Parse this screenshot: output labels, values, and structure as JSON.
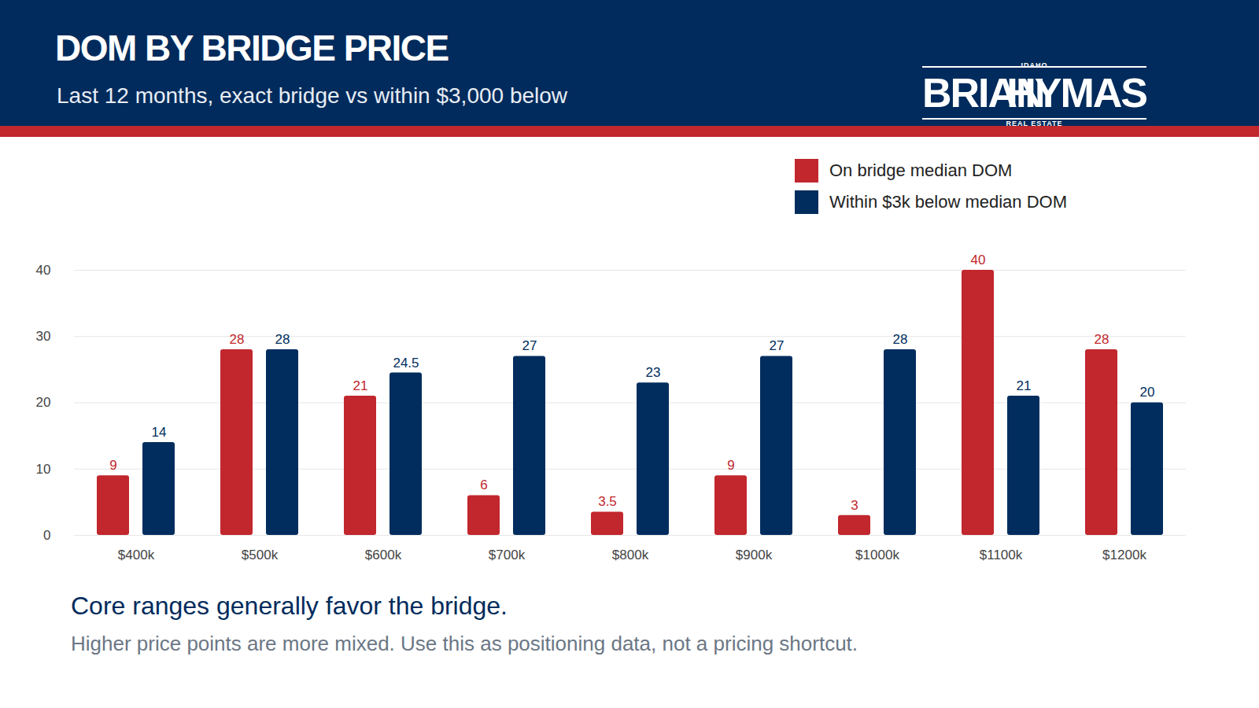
{
  "branding": {
    "top": "IDAHO",
    "left": "BRIAN",
    "right": "HYMAS",
    "bottom": "REAL ESTATE"
  },
  "chart_data": {
    "type": "bar",
    "title": "DOM BY BRIDGE PRICE",
    "subtitle": "Last 12 months, exact bridge vs within $3,000 below",
    "annotations": [
      "Core ranges generally favor the bridge.",
      "Higher price points are more mixed. Use this as positioning data, not a pricing shortcut."
    ],
    "categories": [
      "$400k",
      "$500k",
      "$600k",
      "$700k",
      "$800k",
      "$900k",
      "$1000k",
      "$1100k",
      "$1200k"
    ],
    "series": [
      {
        "name": "On bridge median DOM",
        "color": "#c1272d",
        "values": [
          9,
          28,
          21,
          6,
          3.5,
          9,
          3,
          40,
          28
        ]
      },
      {
        "name": "Within $3k below median DOM",
        "color": "#002d5e",
        "values": [
          14,
          28,
          24.5,
          27,
          23,
          27,
          28,
          21,
          20
        ]
      }
    ],
    "ylim": [
      0,
      40
    ],
    "yticks": [
      0,
      10,
      20,
      30,
      40
    ],
    "grid": true,
    "legend": "top-right",
    "data_labels": true
  }
}
